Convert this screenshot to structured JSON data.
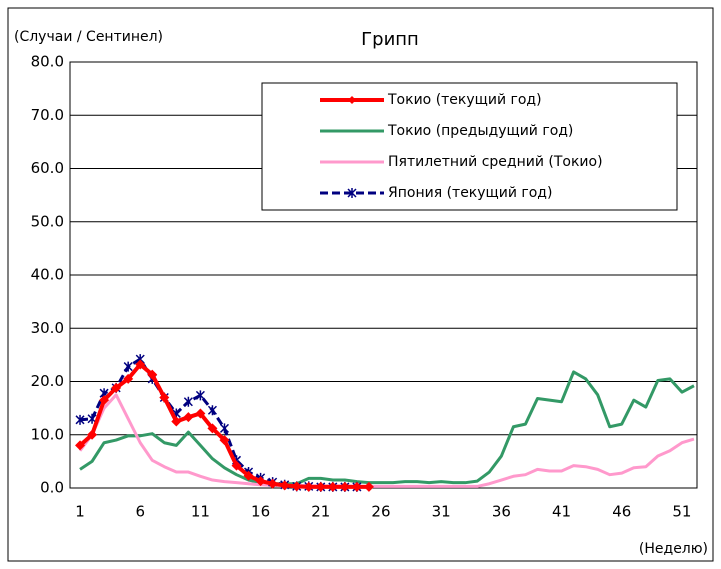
{
  "chart_data": {
    "type": "line",
    "title": "Грипп",
    "y_label": "(Случаи / Сентинел)",
    "x_label": "(Неделю)",
    "categories": [
      1,
      null,
      null,
      null,
      null,
      6,
      null,
      null,
      null,
      null,
      11,
      null,
      null,
      null,
      null,
      16,
      null,
      null,
      null,
      null,
      21,
      null,
      null,
      null,
      null,
      26,
      null,
      null,
      null,
      null,
      31,
      null,
      null,
      null,
      null,
      36,
      null,
      null,
      null,
      null,
      41,
      null,
      null,
      null,
      null,
      46,
      null,
      null,
      null,
      null,
      51,
      null
    ],
    "ylim": [
      0,
      80
    ],
    "yticks": [
      {
        "value": 0,
        "label": "0.0"
      },
      {
        "value": 10,
        "label": "10.0"
      },
      {
        "value": 20,
        "label": "20.0"
      },
      {
        "value": 30,
        "label": "30.0"
      },
      {
        "value": 40,
        "label": "40.0"
      },
      {
        "value": 50,
        "label": "50.0"
      },
      {
        "value": 60,
        "label": "60.0"
      },
      {
        "value": 70,
        "label": "70.0"
      },
      {
        "value": 80,
        "label": "80.0"
      }
    ],
    "grid": true,
    "legend": "upper right",
    "series": [
      {
        "name": "Токио (текущий год)",
        "color": "#ff0000",
        "marker": "diamond",
        "values": [
          8,
          10,
          16.5,
          18.8,
          20.5,
          23.2,
          21.3,
          17,
          12.5,
          13.3,
          14,
          11.2,
          9,
          4.2,
          2.3,
          1.3,
          0.8,
          0.5,
          0.3,
          0.2,
          0.2,
          0.2,
          0.2,
          0.2,
          0.2,
          null,
          null,
          null,
          null,
          null,
          null,
          null,
          null,
          null,
          null,
          null,
          null,
          null,
          null,
          null,
          null,
          null,
          null,
          null,
          null,
          null,
          null,
          null,
          null,
          null,
          null,
          null
        ]
      },
      {
        "name": "Токио (предыдущий год)",
        "color": "#339966",
        "values": [
          3.5,
          5,
          8.5,
          9,
          9.8,
          9.8,
          10.2,
          8.5,
          8,
          10.5,
          8,
          5.5,
          3.8,
          2.5,
          1.5,
          1,
          0.8,
          0.8,
          0.8,
          1.8,
          1.8,
          1.5,
          1.5,
          1.2,
          1,
          1,
          1,
          1.2,
          1.2,
          1,
          1.2,
          1,
          1,
          1.3,
          3,
          6,
          11.5,
          12,
          16.8,
          16.5,
          16.2,
          21.8,
          20.5,
          17.5,
          11.5,
          12,
          16.5,
          15.2,
          20.2,
          20.5,
          18,
          19.2
        ]
      },
      {
        "name": "Пятилетний средний (Токио)",
        "color": "#ff99cc",
        "values": [
          7,
          10,
          15,
          17.5,
          13,
          8.5,
          5.2,
          4,
          3,
          3,
          2.2,
          1.5,
          1.2,
          1,
          0.8,
          0.6,
          0.5,
          0.5,
          0.5,
          0.4,
          0.4,
          0.4,
          0.4,
          0.3,
          0.3,
          0.3,
          0.3,
          0.3,
          0.3,
          0.3,
          0.3,
          0.3,
          0.3,
          0.3,
          0.8,
          1.5,
          2.2,
          2.5,
          3.5,
          3.2,
          3.2,
          4.2,
          4,
          3.5,
          2.5,
          2.8,
          3.8,
          4,
          6,
          7,
          8.5,
          9.2
        ]
      },
      {
        "name": "Япония (текущий год)",
        "color": "#000080",
        "marker": "star",
        "dashed": true,
        "values": [
          12.8,
          13,
          17.8,
          18.8,
          22.8,
          24.2,
          20.5,
          17,
          14,
          16.2,
          17.4,
          14.6,
          11.2,
          5.2,
          3,
          1.9,
          1.1,
          0.6,
          0.3,
          0.3,
          0.2,
          0.2,
          0.2,
          0.2,
          null,
          null,
          null,
          null,
          null,
          null,
          null,
          null,
          null,
          null,
          null,
          null,
          null,
          null,
          null,
          null,
          null,
          null,
          null,
          null,
          null,
          null,
          null,
          null,
          null,
          null,
          null,
          null
        ]
      }
    ]
  }
}
